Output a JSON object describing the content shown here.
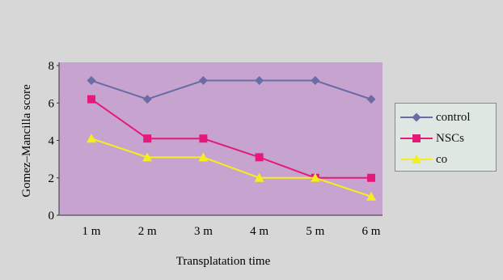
{
  "chart_data": {
    "type": "line",
    "xlabel": "Transplatation time",
    "ylabel": "Gomez–Mancilla score",
    "categories": [
      "1 m",
      "2 m",
      "3 m",
      "4 m",
      "5 m",
      "6 m"
    ],
    "ylim": [
      0,
      8
    ],
    "yticks": [
      "0",
      "2",
      "4",
      "6",
      "8"
    ],
    "grid": false,
    "legend_position": "right",
    "plot_background": "#c7a4cf",
    "series": [
      {
        "name": "control",
        "color": "#6b6ba5",
        "marker": "diamond",
        "values": [
          7.2,
          6.2,
          7.2,
          7.2,
          7.2,
          6.2
        ]
      },
      {
        "name": "NSCs",
        "color": "#e6197a",
        "marker": "square",
        "values": [
          6.2,
          4.1,
          4.1,
          3.1,
          2.0,
          2.0
        ]
      },
      {
        "name": "co",
        "color": "#f5ee1c",
        "marker": "triangle",
        "values": [
          4.1,
          3.1,
          3.1,
          2.0,
          2.0,
          1.0
        ]
      }
    ]
  }
}
